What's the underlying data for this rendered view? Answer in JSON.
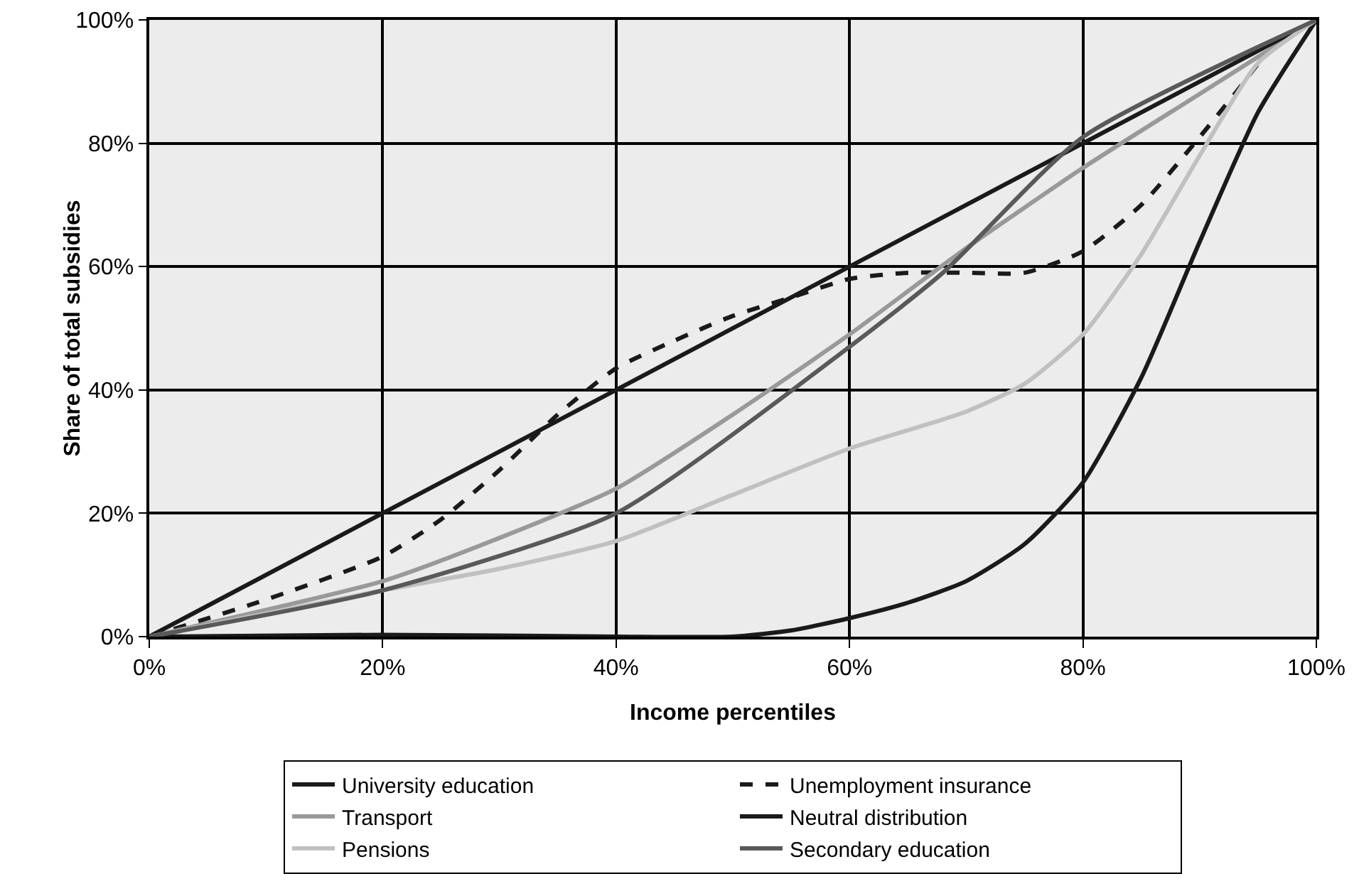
{
  "chart_data": {
    "type": "line",
    "xlabel": "Income percentiles",
    "ylabel": "Share of total subsidies",
    "xlim": [
      0,
      100
    ],
    "ylim": [
      0,
      100
    ],
    "xticks": [
      {
        "value": 0,
        "label": "0%"
      },
      {
        "value": 20,
        "label": "20%"
      },
      {
        "value": 40,
        "label": "40%"
      },
      {
        "value": 60,
        "label": "60%"
      },
      {
        "value": 80,
        "label": "80%"
      },
      {
        "value": 100,
        "label": "100%"
      }
    ],
    "yticks": [
      {
        "value": 0,
        "label": "0%"
      },
      {
        "value": 20,
        "label": "20%"
      },
      {
        "value": 40,
        "label": "40%"
      },
      {
        "value": 60,
        "label": "60%"
      },
      {
        "value": 80,
        "label": "80%"
      },
      {
        "value": 100,
        "label": "100%"
      }
    ],
    "grid": true,
    "legend": "bottom",
    "marker": "none",
    "series": [
      {
        "name": "University education",
        "color": "#1a1a1a",
        "line_style": "solid",
        "x": [
          0,
          20,
          40,
          50,
          55,
          60,
          65,
          70,
          75,
          80,
          85,
          90,
          95,
          100
        ],
        "values": [
          0,
          0.3,
          0,
          0,
          1,
          3,
          5.5,
          9,
          15,
          25,
          42,
          64,
          85,
          100
        ]
      },
      {
        "name": "Unemployment insurance",
        "color": "#1a1a1a",
        "line_style": "dashed",
        "x": [
          0,
          10,
          20,
          25,
          30,
          35,
          40,
          45,
          50,
          55,
          60,
          65,
          70,
          75,
          80,
          85,
          90,
          93,
          96,
          100
        ],
        "values": [
          0,
          6,
          13,
          19,
          27,
          36,
          43.5,
          48,
          52,
          55,
          58,
          59,
          59,
          59,
          62.5,
          70,
          81,
          88,
          95,
          100
        ]
      },
      {
        "name": "Transport",
        "color": "#999999",
        "line_style": "solid",
        "x": [
          0,
          20,
          30,
          40,
          50,
          60,
          70,
          80,
          90,
          100
        ],
        "values": [
          0,
          9,
          16,
          24,
          36,
          49,
          63,
          76,
          88,
          100
        ]
      },
      {
        "name": "Neutral distribution",
        "color": "#1a1a1a",
        "line_style": "solid",
        "x": [
          0,
          100
        ],
        "values": [
          0,
          100
        ]
      },
      {
        "name": "Pensions",
        "color": "#c0c0c0",
        "line_style": "solid",
        "x": [
          0,
          20,
          30,
          40,
          50,
          60,
          70,
          75,
          80,
          85,
          90,
          95,
          100
        ],
        "values": [
          0,
          7.5,
          11,
          15.5,
          23,
          30.5,
          36.5,
          41,
          49,
          62,
          78,
          93,
          100
        ]
      },
      {
        "name": "Secondary education",
        "color": "#595959",
        "line_style": "solid",
        "x": [
          0,
          20,
          40,
          60,
          68,
          80,
          100
        ],
        "values": [
          0,
          7.5,
          20,
          47,
          59,
          81,
          100
        ]
      }
    ]
  }
}
